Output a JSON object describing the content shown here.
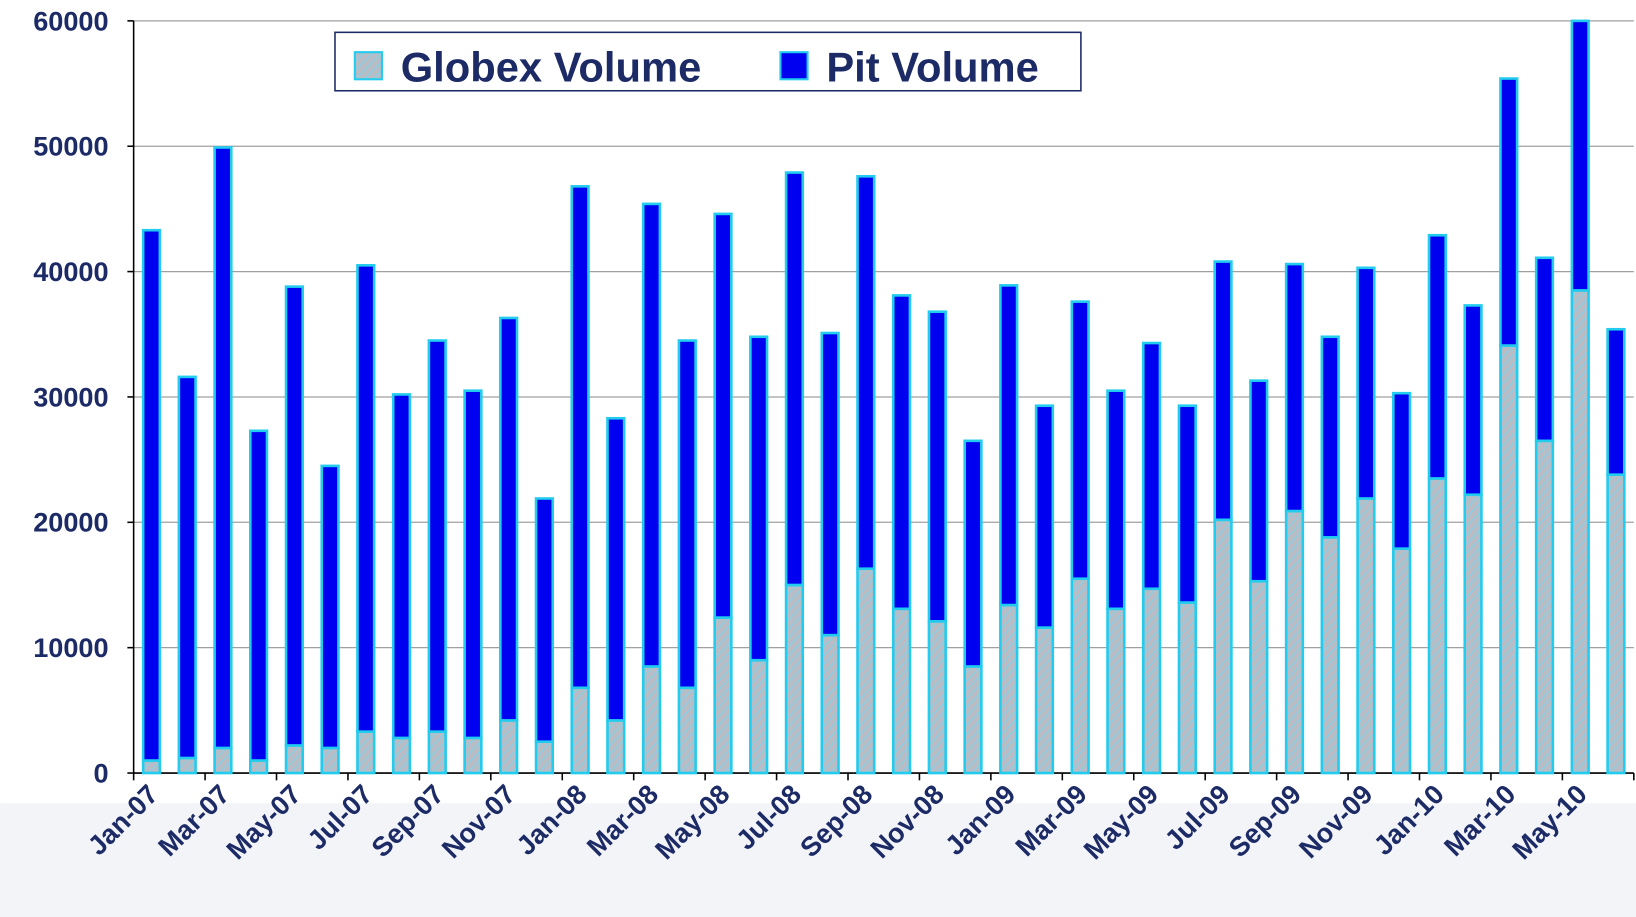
{
  "chart_data": {
    "type": "bar",
    "stacked": true,
    "categories": [
      "Jan-07",
      null,
      "Mar-07",
      null,
      "May-07",
      null,
      "Jul-07",
      null,
      "Sep-07",
      null,
      "Nov-07",
      null,
      "Jan-08",
      null,
      "Mar-08",
      null,
      "May-08",
      null,
      "Jul-08",
      null,
      "Sep-08",
      null,
      "Nov-08",
      null,
      "Jan-09",
      null,
      "Mar-09",
      null,
      "May-09",
      null,
      "Jul-09",
      null,
      "Sep-09",
      null,
      "Nov-09",
      null,
      "Jan-10",
      null,
      "Mar-10",
      null,
      "May-10",
      null
    ],
    "series": [
      {
        "name": "Globex Volume",
        "color": "#b8bcc4",
        "values": [
          1000,
          1200,
          2000,
          1000,
          2200,
          2000,
          3300,
          2800,
          3300,
          2800,
          4200,
          2500,
          6800,
          4200,
          8500,
          6800,
          12400,
          9000,
          15000,
          11000,
          16300,
          13100,
          12100,
          8500,
          13400,
          11600,
          15500,
          13100,
          14700,
          13600,
          20200,
          15300,
          20900,
          18800,
          21900,
          17900,
          23500,
          22200,
          34100,
          26500,
          38500,
          23800
        ]
      },
      {
        "name": "Pit Volume",
        "color": "#0000f0",
        "values": [
          42300,
          30400,
          47900,
          26300,
          36600,
          22500,
          37200,
          27400,
          31200,
          27700,
          32100,
          19400,
          40000,
          24100,
          36900,
          27700,
          32200,
          25800,
          32900,
          24100,
          31300,
          25000,
          24700,
          18000,
          25500,
          17700,
          22100,
          17400,
          19600,
          15700,
          20600,
          16000,
          19700,
          16000,
          18400,
          12400,
          19400,
          15100,
          21300,
          14600,
          21500,
          11600
        ]
      }
    ],
    "ylim": [
      0,
      60000
    ],
    "yticks": [
      0,
      10000,
      20000,
      30000,
      40000,
      50000,
      60000
    ],
    "grid": true
  }
}
